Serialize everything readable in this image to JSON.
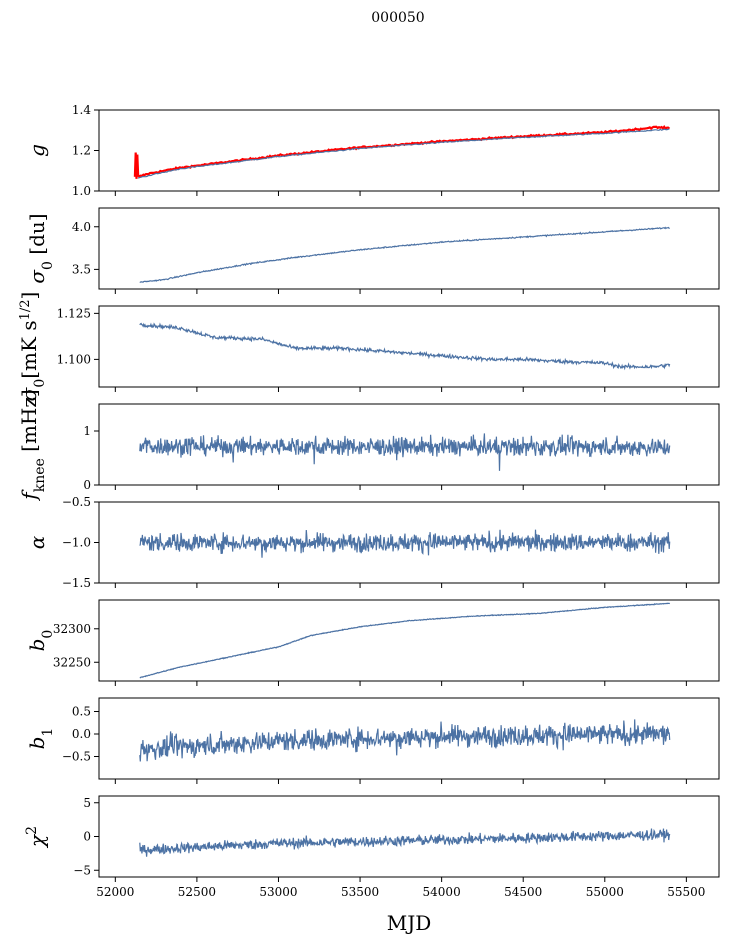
{
  "figure_title": "000050",
  "x_axis": {
    "label": "MJD",
    "range": [
      51900,
      55700
    ],
    "ticks": [
      52000,
      52500,
      53000,
      53500,
      54000,
      54500,
      55000,
      55500
    ],
    "tick_labels": [
      "52000",
      "52500",
      "53000",
      "53500",
      "54000",
      "54500",
      "55000",
      "55500"
    ]
  },
  "chart_data": [
    {
      "type": "line",
      "id": "gain",
      "ylabel": "g",
      "ylim": [
        1.0,
        1.4
      ],
      "yticks": [
        1.0,
        1.2,
        1.4
      ],
      "ytick_labels": [
        "1.0",
        "1.2",
        "1.4"
      ],
      "x_range": [
        52120,
        55400
      ],
      "series": [
        {
          "color": "#ff0000",
          "kind": "model",
          "points": [
            [
              52120,
              1.07
            ],
            [
              52125,
              1.19
            ],
            [
              52130,
              1.06
            ],
            [
              52135,
              1.18
            ],
            [
              52140,
              1.07
            ],
            [
              52200,
              1.085
            ],
            [
              52400,
              1.115
            ],
            [
              52700,
              1.145
            ],
            [
              53000,
              1.175
            ],
            [
              53500,
              1.215
            ],
            [
              54000,
              1.245
            ],
            [
              54500,
              1.27
            ],
            [
              55000,
              1.29
            ],
            [
              55200,
              1.305
            ],
            [
              55300,
              1.315
            ],
            [
              55400,
              1.31
            ]
          ]
        },
        {
          "color": "#4c72a4",
          "kind": "data",
          "points": [
            [
              52140,
              1.065
            ],
            [
              52400,
              1.11
            ],
            [
              52700,
              1.14
            ],
            [
              53000,
              1.17
            ],
            [
              53500,
              1.21
            ],
            [
              54000,
              1.24
            ],
            [
              54500,
              1.265
            ],
            [
              55000,
              1.285
            ],
            [
              55400,
              1.305
            ]
          ]
        }
      ]
    },
    {
      "type": "line",
      "id": "sigma0-du",
      "ylabel": "σ0 [du]",
      "ylim": [
        3.27,
        4.22
      ],
      "yticks": [
        3.5,
        4.0
      ],
      "ytick_labels": [
        "3.5",
        "4.0"
      ],
      "x_range": [
        52150,
        55400
      ],
      "trend": [
        [
          52150,
          3.35
        ],
        [
          52300,
          3.38
        ],
        [
          52500,
          3.46
        ],
        [
          52800,
          3.56
        ],
        [
          53100,
          3.64
        ],
        [
          53500,
          3.73
        ],
        [
          54000,
          3.82
        ],
        [
          54500,
          3.88
        ],
        [
          55000,
          3.94
        ],
        [
          55400,
          3.99
        ]
      ],
      "noise": 0.005,
      "series": [
        {
          "color": "#4c72a4"
        }
      ]
    },
    {
      "type": "line",
      "id": "sigma0-mk",
      "ylabel": "σ0[mK s^1/2]",
      "ylim": [
        1.085,
        1.129
      ],
      "yticks": [
        1.1,
        1.125
      ],
      "ytick_labels": [
        "1.100",
        "1.125"
      ],
      "x_range": [
        52150,
        55400
      ],
      "trend": [
        [
          52150,
          1.119
        ],
        [
          52400,
          1.117
        ],
        [
          52600,
          1.112
        ],
        [
          52900,
          1.111
        ],
        [
          53100,
          1.106
        ],
        [
          53400,
          1.106
        ],
        [
          53700,
          1.104
        ],
        [
          54000,
          1.102
        ],
        [
          54300,
          1.1
        ],
        [
          54500,
          1.1
        ],
        [
          54700,
          1.099
        ],
        [
          55000,
          1.098
        ],
        [
          55100,
          1.096
        ],
        [
          55300,
          1.096
        ],
        [
          55400,
          1.097
        ]
      ],
      "noise": 0.0007,
      "series": [
        {
          "color": "#4c72a4"
        }
      ]
    },
    {
      "type": "line",
      "id": "fknee",
      "ylabel": "fknee [mHz]",
      "ylim": [
        0,
        1.5
      ],
      "yticks": [
        0,
        1
      ],
      "ytick_labels": [
        "0",
        "1"
      ],
      "x_range": [
        52150,
        55400
      ],
      "trend": [
        [
          52150,
          0.72
        ],
        [
          55400,
          0.7
        ]
      ],
      "noise": 0.12,
      "series": [
        {
          "color": "#4c72a4"
        }
      ]
    },
    {
      "type": "line",
      "id": "alpha",
      "ylabel": "α",
      "ylim": [
        -1.5,
        -0.5
      ],
      "yticks": [
        -1.5,
        -1.0,
        -0.5
      ],
      "ytick_labels": [
        "−1.5",
        "−1.0",
        "−0.5"
      ],
      "x_range": [
        52150,
        55400
      ],
      "trend": [
        [
          52150,
          -1.0
        ],
        [
          55400,
          -1.0
        ]
      ],
      "noise": 0.08,
      "series": [
        {
          "color": "#4c72a4"
        }
      ]
    },
    {
      "type": "line",
      "id": "b0",
      "ylabel": "b0",
      "ylim": [
        32222,
        32343
      ],
      "yticks": [
        32250,
        32300
      ],
      "ytick_labels": [
        "32250",
        "32300"
      ],
      "x_range": [
        52150,
        55400
      ],
      "trend": [
        [
          52150,
          32227
        ],
        [
          52400,
          32243
        ],
        [
          52800,
          32263
        ],
        [
          53000,
          32273
        ],
        [
          53200,
          32290
        ],
        [
          53500,
          32303
        ],
        [
          53800,
          32312
        ],
        [
          54200,
          32319
        ],
        [
          54600,
          32323
        ],
        [
          55000,
          32332
        ],
        [
          55400,
          32338
        ]
      ],
      "noise": 0.4,
      "series": [
        {
          "color": "#4c72a4"
        }
      ]
    },
    {
      "type": "line",
      "id": "b1",
      "ylabel": "b1",
      "ylim": [
        -1.0,
        0.8
      ],
      "yticks": [
        -0.5,
        0.0,
        0.5
      ],
      "ytick_labels": [
        "−0.5",
        "0.0",
        "0.5"
      ],
      "x_range": [
        52150,
        55400
      ],
      "trend": [
        [
          52150,
          -0.35
        ],
        [
          53000,
          -0.15
        ],
        [
          54000,
          -0.05
        ],
        [
          55400,
          0.0
        ]
      ],
      "noise": 0.17,
      "series": [
        {
          "color": "#4c72a4"
        }
      ]
    },
    {
      "type": "line",
      "id": "chi2",
      "ylabel": "χ^2",
      "ylim": [
        -6,
        6
      ],
      "yticks": [
        -5,
        0,
        5
      ],
      "ytick_labels": [
        "−5",
        "0",
        "5"
      ],
      "x_range": [
        52150,
        55400
      ],
      "trend": [
        [
          52150,
          -2.0
        ],
        [
          53000,
          -1.0
        ],
        [
          54000,
          -0.5
        ],
        [
          55400,
          0.3
        ]
      ],
      "noise": 0.55,
      "series": [
        {
          "color": "#4c72a4"
        }
      ]
    }
  ]
}
